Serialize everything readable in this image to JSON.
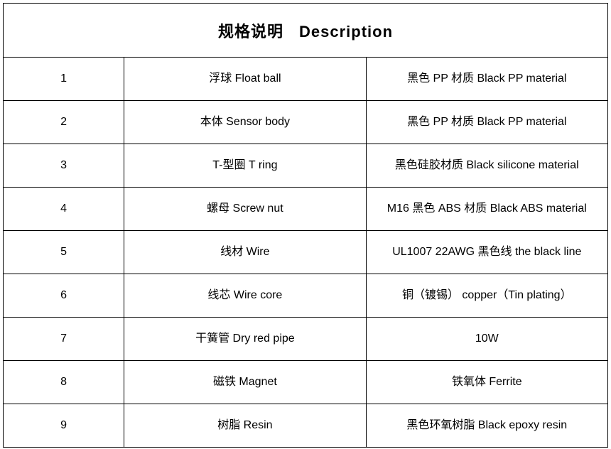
{
  "table": {
    "title_cn": "规格说明",
    "title_en": "Description",
    "title_fontsize": 22,
    "cell_fontsize": 16,
    "border_color": "#000000",
    "background_color": "#ffffff",
    "text_color": "#000000",
    "column_widths_pct": [
      20,
      40,
      40
    ],
    "rows": [
      {
        "no": "1",
        "name": "浮球 Float ball",
        "spec": "黑色 PP 材质  Black PP material"
      },
      {
        "no": "2",
        "name": "本体  Sensor body",
        "spec": "黑色 PP 材质  Black PP material"
      },
      {
        "no": "3",
        "name": "T-型圈  T ring",
        "spec": "黑色硅胶材质  Black silicone material"
      },
      {
        "no": "4",
        "name": "螺母  Screw nut",
        "spec": "M16  黑色 ABS 材质  Black ABS material"
      },
      {
        "no": "5",
        "name": "线材  Wire",
        "spec": "UL1007 22AWG  黑色线  the black line"
      },
      {
        "no": "6",
        "name": "线芯  Wire core",
        "spec": "铜（镀锡）  copper（Tin plating）"
      },
      {
        "no": "7",
        "name": "干簧管  Dry red pipe",
        "spec": "10W"
      },
      {
        "no": "8",
        "name": "磁铁  Magnet",
        "spec": "铁氧体  Ferrite"
      },
      {
        "no": "9",
        "name": "树脂  Resin",
        "spec": "黑色环氧树脂  Black epoxy resin"
      }
    ]
  }
}
